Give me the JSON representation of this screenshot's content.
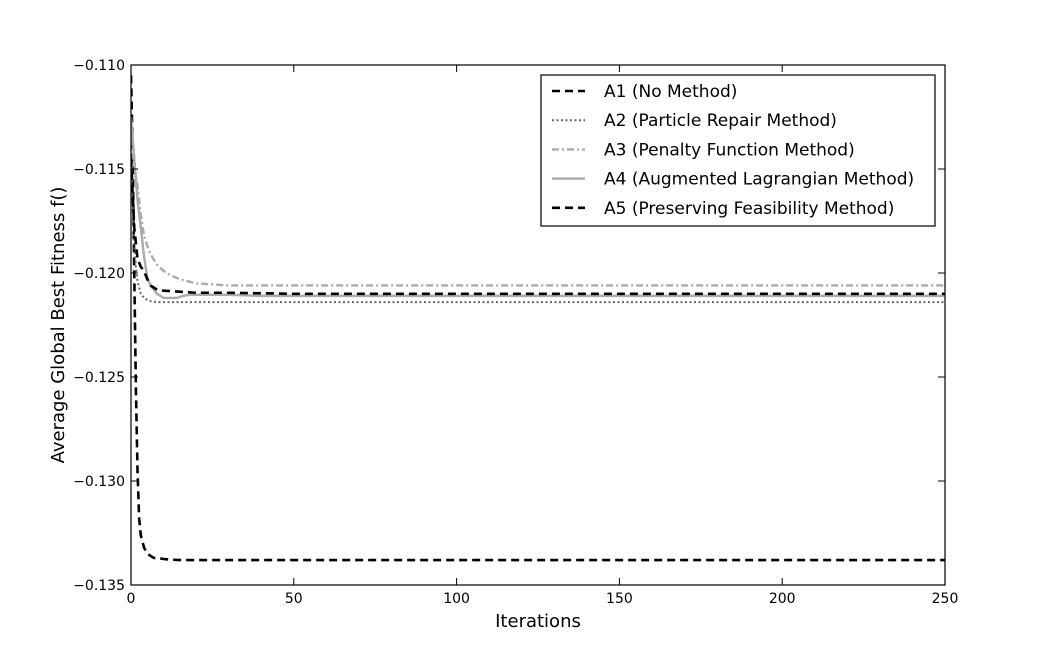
{
  "chart_data": {
    "type": "line",
    "xlabel": "Iterations",
    "ylabel": "Average Global Best Fitness f()",
    "xlim": [
      0,
      250
    ],
    "ylim": [
      -0.135,
      -0.11
    ],
    "xticks": [
      0,
      50,
      100,
      150,
      200,
      250
    ],
    "xtick_labels": [
      "0",
      "50",
      "100",
      "150",
      "200",
      "250"
    ],
    "yticks": [
      -0.11,
      -0.115,
      -0.12,
      -0.125,
      -0.13,
      -0.135
    ],
    "ytick_labels": [
      "−0.110",
      "−0.115",
      "−0.120",
      "−0.125",
      "−0.130",
      "−0.135"
    ],
    "grid": false,
    "legend_position": "top-right",
    "series": [
      {
        "name": "A1 (No Method)",
        "color": "#000000",
        "dash": "dashed",
        "x": [
          0,
          0.5,
          1,
          1.5,
          2,
          2.5,
          3,
          4,
          5,
          6,
          7,
          8,
          10,
          12,
          15,
          20,
          30,
          50,
          100,
          150,
          200,
          250
        ],
        "y": [
          -0.1105,
          -0.114,
          -0.12,
          -0.1255,
          -0.1295,
          -0.1318,
          -0.1326,
          -0.1332,
          -0.1335,
          -0.1336,
          -0.1337,
          -0.1337,
          -0.13375,
          -0.13378,
          -0.1338,
          -0.1338,
          -0.1338,
          -0.1338,
          -0.1338,
          -0.1338,
          -0.1338,
          -0.1338
        ]
      },
      {
        "name": "A2 (Particle Repair Method)",
        "color": "#666666",
        "dash": "dotted",
        "x": [
          0,
          0.5,
          1,
          1.5,
          2,
          3,
          4,
          5,
          6,
          8,
          10,
          15,
          20,
          30,
          50,
          100,
          150,
          200,
          250
        ],
        "y": [
          -0.1125,
          -0.1165,
          -0.1185,
          -0.1197,
          -0.1204,
          -0.121,
          -0.1212,
          -0.1213,
          -0.12135,
          -0.1214,
          -0.1214,
          -0.1214,
          -0.1214,
          -0.1214,
          -0.1214,
          -0.1214,
          -0.1214,
          -0.1214,
          -0.1214
        ]
      },
      {
        "name": "A3 (Penalty Function Method)",
        "color": "#aaaaaa",
        "dash": "dashdot",
        "x": [
          0,
          1,
          2,
          3,
          4,
          5,
          6,
          8,
          10,
          12,
          15,
          20,
          25,
          30,
          40,
          50,
          100,
          150,
          200,
          250
        ],
        "y": [
          -0.1135,
          -0.1148,
          -0.1158,
          -0.1172,
          -0.1182,
          -0.1187,
          -0.1191,
          -0.1196,
          -0.1199,
          -0.1201,
          -0.1203,
          -0.1205,
          -0.12055,
          -0.1206,
          -0.1206,
          -0.1206,
          -0.1206,
          -0.1206,
          -0.1206,
          -0.1206
        ]
      },
      {
        "name": "A4 (Augmented Lagrangian Method)",
        "color": "#aaaaaa",
        "dash": "solid",
        "x": [
          0,
          1,
          2,
          3,
          4,
          5,
          6,
          7,
          8,
          10,
          12,
          14,
          16,
          18,
          20,
          25,
          30,
          40,
          50,
          100,
          150,
          200,
          250
        ],
        "y": [
          -0.1125,
          -0.1145,
          -0.1165,
          -0.1178,
          -0.1192,
          -0.1202,
          -0.1206,
          -0.1208,
          -0.121,
          -0.1212,
          -0.1212,
          -0.1212,
          -0.1211,
          -0.12105,
          -0.12105,
          -0.12105,
          -0.12105,
          -0.1211,
          -0.1211,
          -0.1211,
          -0.1211,
          -0.1211,
          -0.1211
        ]
      },
      {
        "name": "A5 (Preserving Feasibility Method)",
        "color": "#000000",
        "dash": "dashed",
        "x": [
          0,
          1,
          2,
          3,
          4,
          5,
          6,
          8,
          10,
          15,
          20,
          30,
          50,
          100,
          150,
          200,
          250
        ],
        "y": [
          -0.1145,
          -0.1178,
          -0.1193,
          -0.1197,
          -0.1199,
          -0.1203,
          -0.1206,
          -0.1208,
          -0.12085,
          -0.1209,
          -0.12095,
          -0.12095,
          -0.121,
          -0.121,
          -0.121,
          -0.121,
          -0.121
        ]
      }
    ]
  }
}
